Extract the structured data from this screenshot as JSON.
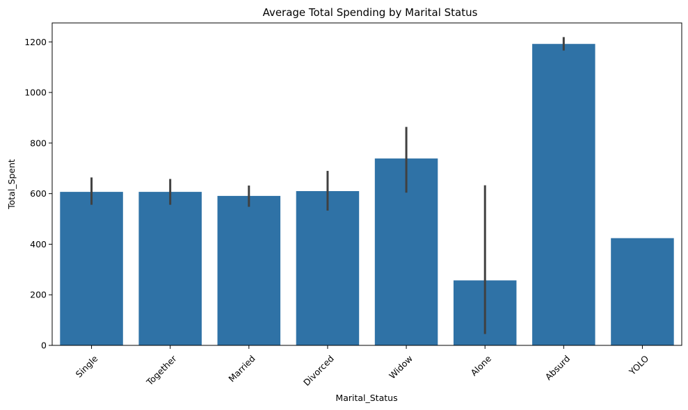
{
  "chart_data": {
    "type": "bar",
    "title": "Average Total Spending by Marital Status",
    "xlabel": "Marital_Status",
    "ylabel": "Total_Spent",
    "categories": [
      "Single",
      "Together",
      "Married",
      "Divorced",
      "Widow",
      "Alone",
      "Absurd",
      "YOLO"
    ],
    "values": [
      607,
      607,
      591,
      610,
      739,
      257,
      1192,
      424
    ],
    "error_low": [
      556,
      556,
      548,
      533,
      604,
      45,
      1166,
      424
    ],
    "error_high": [
      664,
      658,
      632,
      690,
      864,
      633,
      1219,
      424
    ],
    "ylim": [
      0,
      1275
    ],
    "yticks": [
      0,
      200,
      400,
      600,
      800,
      1000,
      1200
    ],
    "x_tick_rotation": 45,
    "grid": false,
    "colors": {
      "bar": "#2f72a6",
      "error_bar": "#404040",
      "axis": "#000000"
    }
  }
}
